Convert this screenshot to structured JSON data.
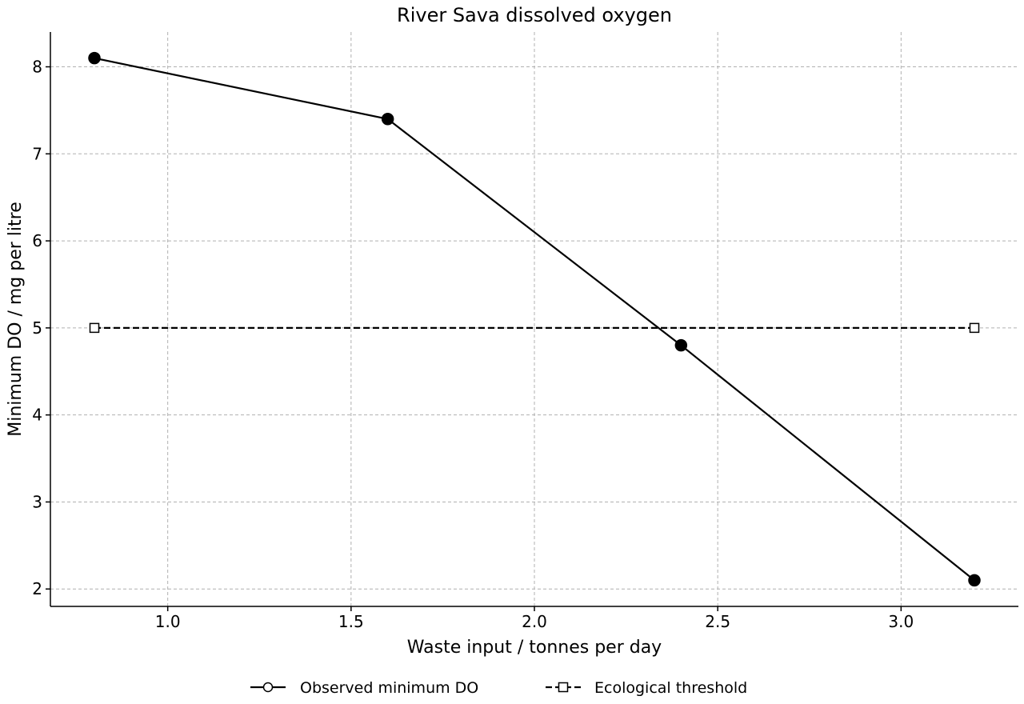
{
  "chart_data": {
    "type": "line",
    "title": "River Sava dissolved oxygen",
    "xlabel": "Waste input / tonnes per day",
    "ylabel": "Minimum DO / mg per litre",
    "xlim": [
      0.68,
      3.32
    ],
    "ylim": [
      1.8,
      8.4
    ],
    "x_ticks": [
      1.0,
      1.5,
      2.0,
      2.5,
      3.0
    ],
    "x_tick_labels": [
      "1.0",
      "1.5",
      "2.0",
      "2.5",
      "3.0"
    ],
    "y_ticks": [
      2,
      3,
      4,
      5,
      6,
      7,
      8
    ],
    "y_tick_labels": [
      "2",
      "3",
      "4",
      "5",
      "6",
      "7",
      "8"
    ],
    "grid": true,
    "legend_position": "bottom-center",
    "series": [
      {
        "name": "Observed minimum DO",
        "x": [
          0.8,
          1.6,
          2.4,
          3.2
        ],
        "y": [
          8.1,
          7.4,
          4.8,
          2.1
        ],
        "line_style": "solid",
        "marker": "circle-filled",
        "color": "#000000"
      },
      {
        "name": "Ecological threshold",
        "x": [
          0.8,
          3.2
        ],
        "y": [
          5.0,
          5.0
        ],
        "line_style": "dashed",
        "marker": "square-open",
        "color": "#000000"
      }
    ]
  }
}
